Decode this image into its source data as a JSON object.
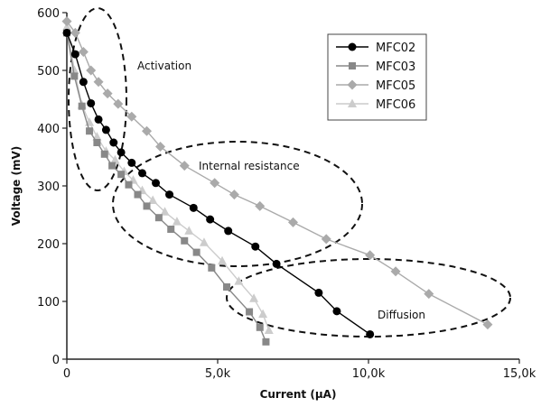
{
  "chart_data": {
    "type": "line",
    "title": "",
    "xlabel": "Current (µA)",
    "ylabel": "Voltage (mV)",
    "xlim": [
      0,
      15000
    ],
    "ylim": [
      0,
      600
    ],
    "x_ticks": [
      {
        "value": 0,
        "label": "0"
      },
      {
        "value": 5000,
        "label": "5,0k"
      },
      {
        "value": 10000,
        "label": "10,0k"
      },
      {
        "value": 15000,
        "label": "15,0k"
      }
    ],
    "y_ticks": [
      {
        "value": 0,
        "label": "0"
      },
      {
        "value": 100,
        "label": "100"
      },
      {
        "value": 200,
        "label": "200"
      },
      {
        "value": 300,
        "label": "300"
      },
      {
        "value": 400,
        "label": "400"
      },
      {
        "value": 500,
        "label": "500"
      },
      {
        "value": 600,
        "label": "600"
      }
    ],
    "grid": false,
    "legend_position": "top-right",
    "series": [
      {
        "name": "MFC02",
        "color": "#000000",
        "marker": "circle",
        "points": [
          [
            0,
            565
          ],
          [
            280,
            528
          ],
          [
            550,
            480
          ],
          [
            800,
            443
          ],
          [
            1050,
            415
          ],
          [
            1300,
            397
          ],
          [
            1550,
            375
          ],
          [
            1800,
            358
          ],
          [
            2150,
            340
          ],
          [
            2500,
            322
          ],
          [
            2950,
            305
          ],
          [
            3400,
            285
          ],
          [
            4200,
            262
          ],
          [
            4750,
            242
          ],
          [
            5350,
            222
          ],
          [
            6250,
            195
          ],
          [
            6950,
            165
          ],
          [
            8350,
            115
          ],
          [
            8950,
            83
          ],
          [
            10050,
            43
          ]
        ]
      },
      {
        "name": "MFC03",
        "color": "#888888",
        "marker": "square",
        "points": [
          [
            0,
            565
          ],
          [
            250,
            490
          ],
          [
            500,
            438
          ],
          [
            750,
            395
          ],
          [
            1000,
            375
          ],
          [
            1250,
            355
          ],
          [
            1500,
            335
          ],
          [
            1800,
            320
          ],
          [
            2050,
            302
          ],
          [
            2350,
            285
          ],
          [
            2650,
            265
          ],
          [
            3050,
            245
          ],
          [
            3450,
            225
          ],
          [
            3900,
            205
          ],
          [
            4300,
            185
          ],
          [
            4800,
            158
          ],
          [
            5300,
            125
          ],
          [
            6050,
            82
          ],
          [
            6400,
            55
          ],
          [
            6600,
            30
          ]
        ]
      },
      {
        "name": "MFC05",
        "color": "#aaaaaa",
        "marker": "diamond",
        "points": [
          [
            0,
            585
          ],
          [
            280,
            565
          ],
          [
            550,
            532
          ],
          [
            800,
            500
          ],
          [
            1050,
            480
          ],
          [
            1350,
            460
          ],
          [
            1700,
            442
          ],
          [
            2150,
            420
          ],
          [
            2650,
            395
          ],
          [
            3100,
            368
          ],
          [
            3900,
            335
          ],
          [
            4900,
            305
          ],
          [
            5550,
            285
          ],
          [
            6400,
            265
          ],
          [
            7500,
            237
          ],
          [
            8600,
            208
          ],
          [
            10050,
            180
          ],
          [
            10900,
            152
          ],
          [
            12000,
            113
          ],
          [
            13950,
            60
          ]
        ]
      },
      {
        "name": "MFC06",
        "color": "#cccccc",
        "marker": "triangle",
        "points": [
          [
            0,
            575
          ],
          [
            250,
            500
          ],
          [
            500,
            440
          ],
          [
            750,
            410
          ],
          [
            1000,
            385
          ],
          [
            1300,
            360
          ],
          [
            1600,
            345
          ],
          [
            1900,
            325
          ],
          [
            2200,
            310
          ],
          [
            2500,
            292
          ],
          [
            2850,
            275
          ],
          [
            3250,
            255
          ],
          [
            3650,
            238
          ],
          [
            4050,
            222
          ],
          [
            4550,
            202
          ],
          [
            5150,
            170
          ],
          [
            5700,
            135
          ],
          [
            6200,
            105
          ],
          [
            6500,
            78
          ],
          [
            6700,
            50
          ]
        ]
      }
    ],
    "annotations": [
      {
        "text": "Activation"
      },
      {
        "text": "Internal resistance"
      },
      {
        "text": "Diffusion"
      }
    ]
  }
}
